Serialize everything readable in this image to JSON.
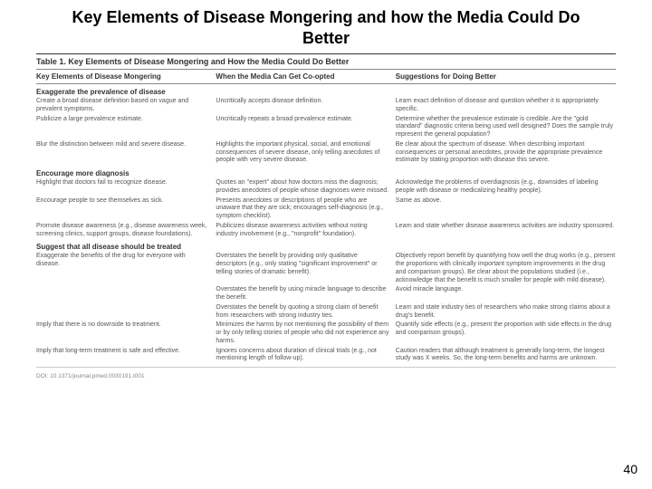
{
  "slide_title": "Key Elements of Disease Mongering and how the Media Could Do Better",
  "page_number": "40",
  "table": {
    "caption": "Table 1. Key Elements of Disease Mongering and How the Media Could Do Better",
    "headers": [
      "Key Elements of Disease Mongering",
      "When the Media Can Get Co-opted",
      "Suggestions for Doing Better"
    ],
    "doi": "DOI: 10.1371/journal.pmed.0030191.t001",
    "sections": [
      {
        "title": "Exaggerate the prevalence of disease",
        "rows": [
          {
            "c1": "Create a broad disease definition based on vague and prevalent symptoms.",
            "c2": "Uncritically accepts disease definition.",
            "c3": "Learn exact definition of disease and question whether it is appropriately specific."
          },
          {
            "c1": "Publicize a large prevalence estimate.",
            "c2": "Uncritically repeats a broad prevalence estimate.",
            "c3": "Determine whether the prevalence estimate is credible. Are the \"gold standard\" diagnostic criteria being used well designed? Does the sample truly represent the general population?"
          },
          {
            "c1": "Blur the distinction between mild and severe disease.",
            "c2": "Highlights the important physical, social, and emotional consequences of severe disease, only telling anecdotes of people with very severe disease.",
            "c3": "Be clear about the spectrum of disease. When describing important consequences or personal anecdotes, provide the appropriate prevalence estimate by stating proportion with disease this severe."
          }
        ]
      },
      {
        "title": "Encourage more diagnosis",
        "rows": [
          {
            "c1": "Highlight that doctors fail to recognize disease.",
            "c2": "Quotes an \"expert\" about how doctors miss the diagnosis; provides anecdotes of people whose diagnoses were missed.",
            "c3": "Acknowledge the problems of overdiagnosis (e.g., downsides of labeling people with disease or medicalizing healthy people)."
          },
          {
            "c1": "Encourage people to see themselves as sick.",
            "c2": "Presents anecdotes or descriptions of people who are unaware that they are sick; encourages self-diagnosis (e.g., symptom checklist).",
            "c3": "Same as above."
          },
          {
            "c1": "Promote disease awareness (e.g., disease awareness week, screening clinics, support groups, disease foundations).",
            "c2": "Publicizes disease awareness activities without noting industry involvement (e.g., \"nonprofit\" foundation).",
            "c3": "Learn and state whether disease awareness activities are industry sponsored."
          }
        ]
      },
      {
        "title": "Suggest that all disease should be treated",
        "rows": [
          {
            "c1": "Exaggerate the benefits of the drug for everyone with disease.",
            "c2": "Overstates the benefit by providing only qualitative descriptors (e.g., only stating \"significant improvement\" or telling stories of dramatic benefit).",
            "c3": "Objectively report benefit by quantifying how well the drug works (e.g., present the proportions with clinically important symptom improvements in the drug and comparison groups). Be clear about the populations studied (i.e., acknowledge that the benefit is much smaller for people with mild disease)."
          },
          {
            "c1": "",
            "c2": "Overstates the benefit by using miracle language to describe the benefit.",
            "c3": "Avoid miracle language."
          },
          {
            "c1": "",
            "c2": "Overstates the benefit by quoting a strong claim of benefit from researchers with strong industry ties.",
            "c3": "Learn and state industry ties of researchers who make strong claims about a drug's benefit."
          },
          {
            "c1": "Imply that there is no downside to treatment.",
            "c2": "Minimizes the harms by not mentioning the possibility of them or by only telling stories of people who did not experience any harms.",
            "c3": "Quantify side effects (e.g., present the proportion with side effects in the drug and comparison groups)."
          },
          {
            "c1": "Imply that long-term treatment is safe and effective.",
            "c2": "Ignores concerns about duration of clinical trials (e.g., not mentioning length of follow-up).",
            "c3": "Caution readers that although treatment is generally long-term, the longest study was X weeks. So, the long-term benefits and harms are unknown."
          }
        ]
      }
    ]
  }
}
